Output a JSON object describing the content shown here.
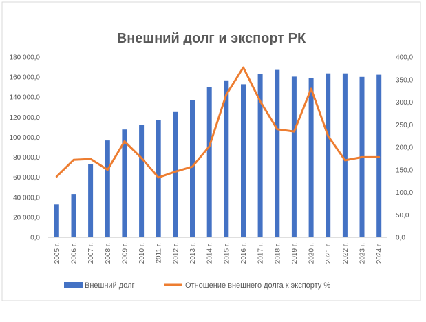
{
  "chart_data": {
    "type": "bar",
    "title": "Внешний долг и экспорт РК",
    "categories": [
      "2005 г.",
      "2006 г.",
      "2007 г.",
      "2008 г.",
      "2009 г.",
      "2010 г.",
      "2011 г.",
      "2012 г.",
      "2013 г.",
      "2014 г.",
      "2015 г.",
      "2016 г.",
      "2017 г.",
      "2018 г.",
      "2019 г.",
      "2020 г.",
      "2021 г.",
      "2022 г.",
      "2023 г.",
      "2024 г."
    ],
    "series": [
      {
        "name": "Внешний долг",
        "type": "bar",
        "axis": "left",
        "color": "#4472C4",
        "values": [
          32800,
          43200,
          73300,
          96800,
          107700,
          112500,
          117400,
          125200,
          136800,
          150000,
          156800,
          152900,
          163400,
          167200,
          160500,
          159200,
          163700,
          163700,
          160200,
          162400
        ]
      },
      {
        "name": "Отношение внешнего долга к экспорту %",
        "type": "line",
        "axis": "right",
        "color": "#ED7D31",
        "values": [
          135,
          172,
          174,
          150,
          213,
          176,
          133,
          146,
          157,
          202,
          317,
          377,
          302,
          240,
          235,
          330,
          225,
          171,
          178,
          178
        ]
      }
    ],
    "y_left": {
      "min": 0,
      "max": 180000,
      "ticks": [
        "0,0",
        "20 000,0",
        "40 000,0",
        "60 000,0",
        "80 000,0",
        "100 000,0",
        "120 000,0",
        "140 000,0",
        "160 000,0",
        "180 000,0"
      ]
    },
    "y_right": {
      "min": 0,
      "max": 400,
      "ticks": [
        "0,0",
        "50,0",
        "100,0",
        "150,0",
        "200,0",
        "250,0",
        "300,0",
        "350,0",
        "400,0"
      ]
    },
    "grid": false,
    "legend": "bottom"
  }
}
